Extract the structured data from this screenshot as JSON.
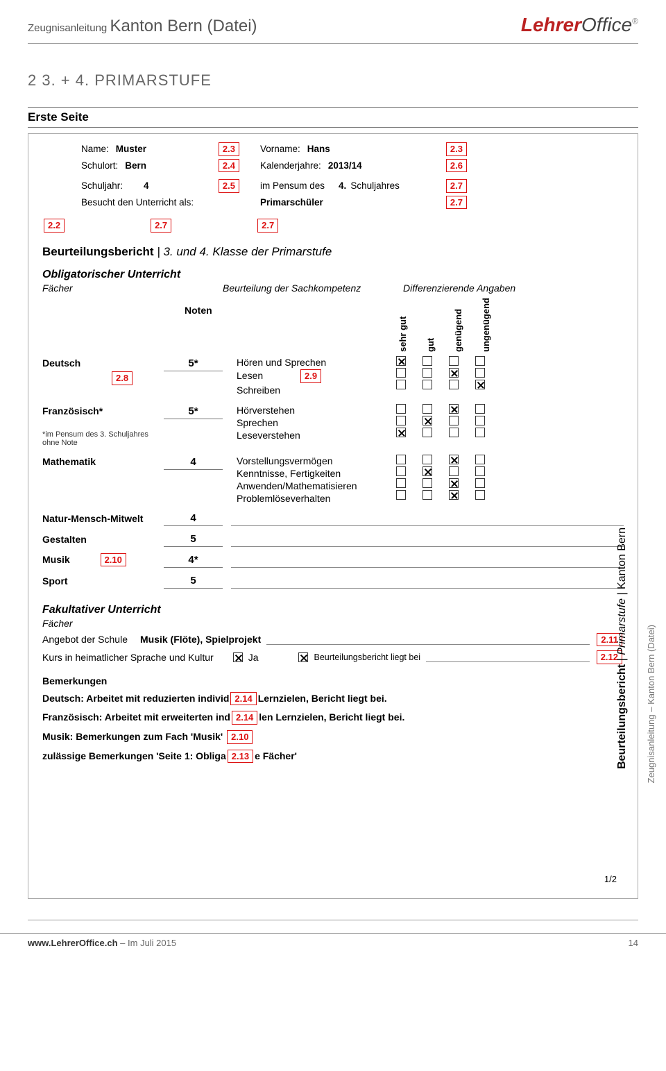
{
  "doc": {
    "title_small": "Zeugnisanleitung",
    "title_big": "Kanton Bern (Datei)",
    "logo_a": "Lehrer",
    "logo_b": "Office",
    "logo_reg": "®"
  },
  "section": {
    "num": "2   3. + 4. PRIMARSTUFE",
    "sub": "Erste Seite"
  },
  "form": {
    "name_lbl": "Name:",
    "name_val": "Muster",
    "name_ref": "2.3",
    "vorname_lbl": "Vorname:",
    "vorname_val": "Hans",
    "vorname_ref": "2.3",
    "schulort_lbl": "Schulort:",
    "schulort_val": "Bern",
    "schulort_ref": "2.4",
    "kalender_lbl": "Kalenderjahre:",
    "kalender_val": "2013/14",
    "kalender_ref": "2.6",
    "schuljahr_lbl": "Schuljahr:",
    "schuljahr_val": "4",
    "schuljahr_ref": "2.5",
    "pensum_lbl": "im Pensum des",
    "pensum_val": "4.",
    "pensum_suf": "Schuljahres",
    "pensum_ref": "2.7",
    "besucht_lbl": "Besucht den Unterricht als:",
    "besucht_val": "Primarschüler",
    "besucht_ref": "2.7",
    "row3_ref_a": "2.2",
    "row3_ref_b": "2.7",
    "row3_ref_c": "2.7"
  },
  "report": {
    "title_a": "Beurteilungsbericht",
    "title_b": "| 3. und 4. Klasse der Primarstufe",
    "oblig": "Obligatorischer Unterricht",
    "faecher": "Fächer",
    "beurt": "Beurteilung der Sachkompetenz",
    "diff": "Differenzierende Angaben",
    "noten": "Noten",
    "col_sehrgut": "sehr gut",
    "col_gut": "gut",
    "col_gen": "genügend",
    "col_ungen": "ungenügend"
  },
  "subjects": {
    "deutsch": {
      "name": "Deutsch",
      "ref": "2.8",
      "grade": "5*",
      "skills": [
        "Hören und Sprechen",
        "Lesen",
        "Schreiben"
      ],
      "lesen_ref": "2.9",
      "checks": [
        [
          true,
          false,
          false,
          false
        ],
        [
          false,
          false,
          true,
          false
        ],
        [
          false,
          false,
          false,
          true
        ]
      ]
    },
    "franz": {
      "name": "Französisch*",
      "grade": "5*",
      "foot": "*im Pensum des 3. Schuljahres ohne Note",
      "skills": [
        "Hörverstehen",
        "Sprechen",
        "Leseverstehen"
      ],
      "checks": [
        [
          false,
          false,
          true,
          false
        ],
        [
          false,
          true,
          false,
          false
        ],
        [
          true,
          false,
          false,
          false
        ]
      ]
    },
    "mathe": {
      "name": "Mathematik",
      "grade": "4",
      "skills": [
        "Vorstellungsvermögen",
        "Kenntnisse, Fertigkeiten",
        "Anwenden/Mathematisieren",
        "Problemlöseverhalten"
      ],
      "checks": [
        [
          false,
          false,
          true,
          false
        ],
        [
          false,
          true,
          false,
          false
        ],
        [
          false,
          false,
          true,
          false
        ],
        [
          false,
          false,
          true,
          false
        ]
      ]
    },
    "nmm": {
      "name": "Natur-Mensch-Mitwelt",
      "grade": "4"
    },
    "gestalten": {
      "name": "Gestalten",
      "grade": "5"
    },
    "musik": {
      "name": "Musik",
      "ref": "2.10",
      "grade": "4*"
    },
    "sport": {
      "name": "Sport",
      "grade": "5"
    }
  },
  "fakult": {
    "title": "Fakultativer Unterricht",
    "faecher": "Fächer",
    "angebot_lbl": "Angebot der Schule",
    "angebot_val": "Musik (Flöte), Spielprojekt",
    "angebot_ref": "2.11",
    "kurs_lbl": "Kurs in heimatlicher Sprache und Kultur",
    "kurs_ja": "Ja",
    "kurs_liegt": "Beurteilungsbericht liegt bei",
    "kurs_ref": "2.12"
  },
  "bemerk": {
    "hdr": "Bemerkungen",
    "l1a": "Deutsch: Arbeitet mit reduzierten individ",
    "l1_ref": "2.14",
    "l1b": "Lernzielen, Bericht liegt bei.",
    "l2a": "Französisch: Arbeitet mit erweiterten ind",
    "l2_ref": "2.14",
    "l2b": "len Lernzielen, Bericht liegt bei.",
    "l3a": "Musik: Bemerkungen zum Fach 'Musik'",
    "l3_ref": "2.10",
    "l4a": "zulässige Bemerkungen 'Seite 1: Obliga",
    "l4_ref": "2.13",
    "l4b": "e Fächer'"
  },
  "side": {
    "a": "Beurteilungsbericht",
    "b": "Primarstufe",
    "c": "Kanton Bern",
    "outer": "Zeugnisanleitung – Kanton Bern (Datei)"
  },
  "pagenum": "1/2",
  "footer": {
    "url_b": "www.LehrerOffice.ch",
    "url_rest": " – Im Juli 2015",
    "pg": "14"
  },
  "colors": {
    "red": "#d11b1b",
    "grey": "#777"
  }
}
